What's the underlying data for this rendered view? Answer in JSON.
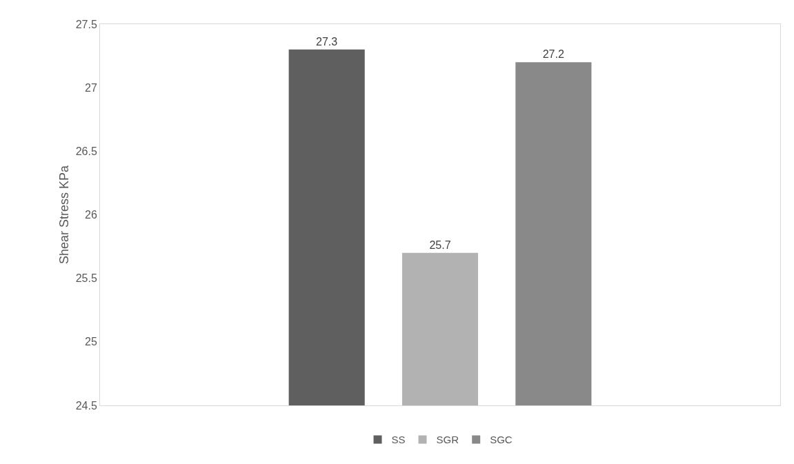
{
  "chart_data": {
    "type": "bar",
    "ylabel": "Shear Stress KPa",
    "categories": [
      null
    ],
    "series": [
      {
        "name": "SS",
        "color": "#5f5f5f",
        "values": [
          27.3
        ]
      },
      {
        "name": "SGR",
        "color": "#b2b2b2",
        "values": [
          25.7
        ]
      },
      {
        "name": "SGC",
        "color": "#898989",
        "values": [
          27.2
        ]
      }
    ],
    "ylim": [
      24.5,
      27.5
    ],
    "yticks": [
      24.5,
      25,
      25.5,
      26,
      26.5,
      27,
      27.5
    ],
    "data_labels": true,
    "grid": false,
    "legend": "bottom"
  }
}
